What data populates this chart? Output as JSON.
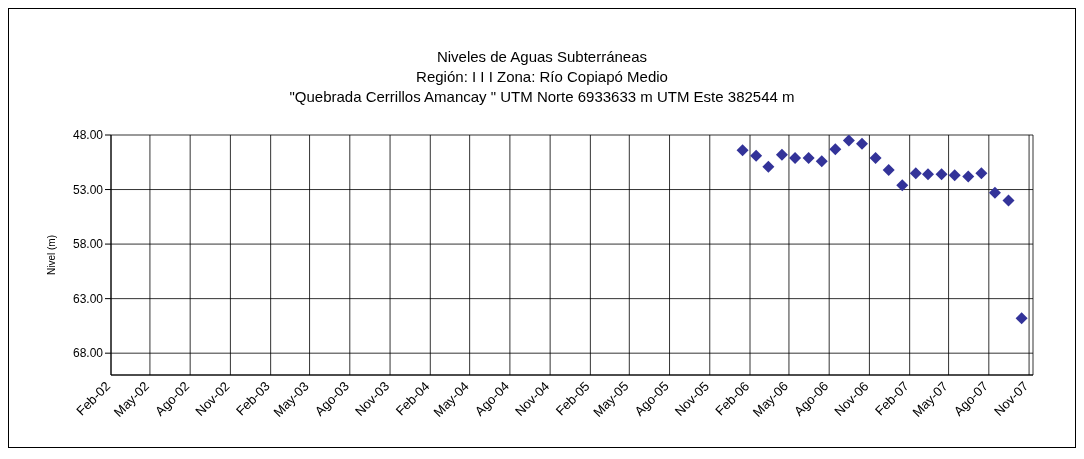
{
  "chart_data": {
    "type": "scatter",
    "title": "Niveles de Aguas Subterráneas",
    "subtitle": "Región: I I I   Zona: Río Copiapó Medio\n\"Quebrada Cerrillos Amancay \" UTM Norte 6933633 m   UTM Este 382544 m",
    "ylabel": "Nivel (m)",
    "x": [
      "2006-01-15",
      "2006-02-15",
      "2006-03-15",
      "2006-04-15",
      "2006-05-15",
      "2006-06-15",
      "2006-07-15",
      "2006-08-15",
      "2006-09-15",
      "2006-10-15",
      "2006-11-15",
      "2006-12-15",
      "2007-01-15",
      "2007-02-15",
      "2007-03-15",
      "2007-04-15",
      "2007-05-15",
      "2007-06-15",
      "2007-07-15",
      "2007-08-15",
      "2007-09-15",
      "2007-10-15"
    ],
    "series": [
      {
        "color": "#333399",
        "values": [
          49.4,
          49.9,
          50.9,
          49.8,
          50.1,
          50.1,
          50.4,
          49.3,
          48.5,
          48.8,
          50.1,
          51.2,
          52.6,
          51.5,
          51.6,
          51.6,
          51.7,
          51.8,
          51.5,
          53.3,
          54.0,
          64.8
        ]
      }
    ],
    "ylim": [
      70,
      48
    ],
    "yticks": [
      {
        "value": 48,
        "label": "48.00"
      },
      {
        "value": 53,
        "label": "53.00"
      },
      {
        "value": 58,
        "label": "58.00"
      },
      {
        "value": 63,
        "label": "63.00"
      },
      {
        "value": 68,
        "label": "68.00"
      }
    ],
    "xlim": [
      "2002-02-01",
      "2007-11-10"
    ],
    "xticks": [
      {
        "value": "2002-02-01",
        "label": "Feb-02"
      },
      {
        "value": "2002-05-01",
        "label": "May-02"
      },
      {
        "value": "2002-08-01",
        "label": "Ago-02"
      },
      {
        "value": "2002-11-01",
        "label": "Nov-02"
      },
      {
        "value": "2003-02-01",
        "label": "Feb-03"
      },
      {
        "value": "2003-05-01",
        "label": "May-03"
      },
      {
        "value": "2003-08-01",
        "label": "Ago-03"
      },
      {
        "value": "2003-11-01",
        "label": "Nov-03"
      },
      {
        "value": "2004-02-01",
        "label": "Feb-04"
      },
      {
        "value": "2004-05-01",
        "label": "May-04"
      },
      {
        "value": "2004-08-01",
        "label": "Ago-04"
      },
      {
        "value": "2004-11-01",
        "label": "Nov-04"
      },
      {
        "value": "2005-02-01",
        "label": "Feb-05"
      },
      {
        "value": "2005-05-01",
        "label": "May-05"
      },
      {
        "value": "2005-08-01",
        "label": "Ago-05"
      },
      {
        "value": "2005-11-01",
        "label": "Nov-05"
      },
      {
        "value": "2006-02-01",
        "label": "Feb-06"
      },
      {
        "value": "2006-05-01",
        "label": "May-06"
      },
      {
        "value": "2006-08-01",
        "label": "Ago-06"
      },
      {
        "value": "2006-11-01",
        "label": "Nov-06"
      },
      {
        "value": "2007-02-01",
        "label": "Feb-07"
      },
      {
        "value": "2007-05-01",
        "label": "May-07"
      },
      {
        "value": "2007-08-01",
        "label": "Ago-07"
      },
      {
        "value": "2007-11-01",
        "label": "Nov-07"
      }
    ],
    "grid": true,
    "legend": false,
    "marker": "diamond"
  }
}
